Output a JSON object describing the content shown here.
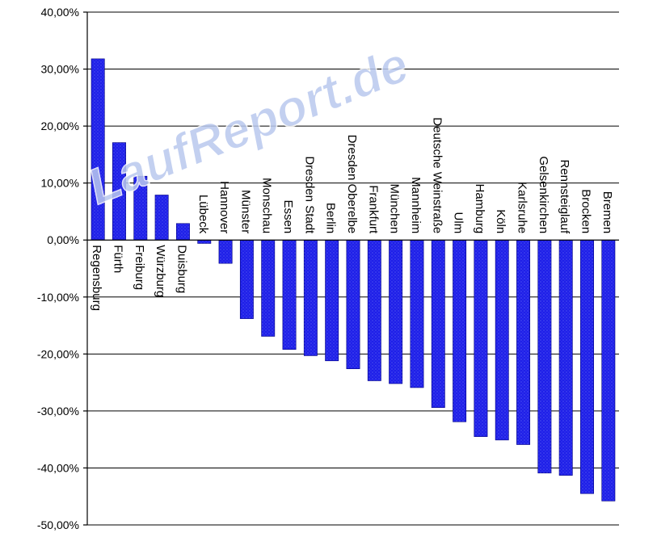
{
  "chart_data": {
    "type": "bar",
    "categories": [
      "Regensburg",
      "Fürth",
      "Freiburg",
      "Würzburg",
      "Duisburg",
      "Lübeck",
      "Hannover",
      "Münster",
      "Monschau",
      "Essen",
      "Dresden Stadt",
      "Berlin",
      "Dresden Oberelbe",
      "Frankfurt",
      "München",
      "Mannheim",
      "Deutsche Weinstraße",
      "Ulm",
      "Hamburg",
      "Köln",
      "Karlsruhe",
      "Gelsenkirchen",
      "Rennsteiglauf",
      "Brocken",
      "Bremen"
    ],
    "values": [
      31.8,
      17.1,
      11.2,
      7.9,
      2.9,
      -0.6,
      -4.1,
      -13.8,
      -16.9,
      -19.2,
      -20.3,
      -21.2,
      -22.6,
      -24.7,
      -25.2,
      -25.9,
      -29.4,
      -31.9,
      -34.5,
      -35.1,
      -35.9,
      -40.9,
      -41.3,
      -44.5,
      -45.8
    ],
    "ylim": [
      -50,
      40
    ],
    "yticks": [
      40,
      30,
      20,
      10,
      0,
      -10,
      -20,
      -30,
      -40,
      -50
    ],
    "ytick_labels": [
      "40,00%",
      "30,00%",
      "20,00%",
      "10,00%",
      "0,00%",
      "-10,00%",
      "-20,00%",
      "-30,00%",
      "-40,00%",
      "-50,00%"
    ],
    "grid": true,
    "bar_color": "#1c1ce6",
    "title": "",
    "xlabel": "",
    "ylabel": ""
  },
  "watermark": "LaufReport.de"
}
